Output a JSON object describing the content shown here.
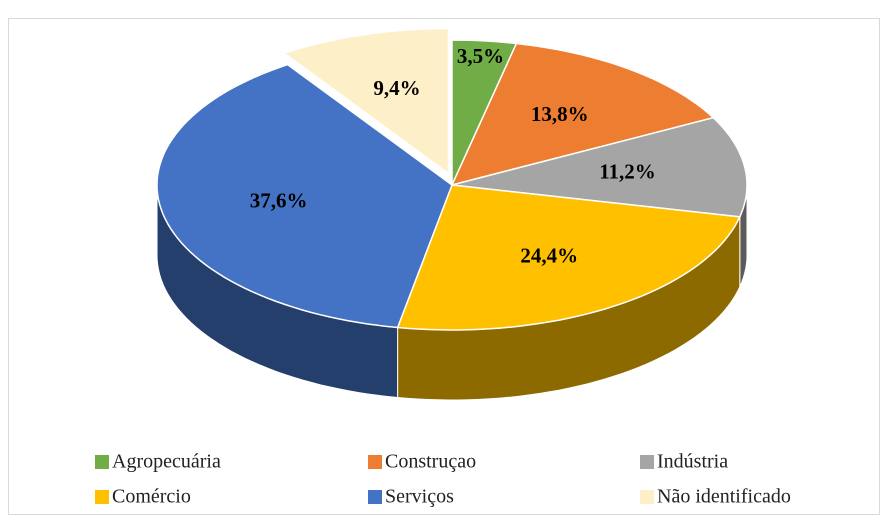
{
  "chart_data": {
    "type": "pie3d",
    "categories": [
      "Agropecuária",
      "Construçao",
      "Indústria",
      "Comércio",
      "Serviços",
      "Não identificado"
    ],
    "values": [
      3.5,
      13.8,
      11.2,
      24.4,
      37.6,
      9.4
    ],
    "value_labels": [
      "3,5%",
      "13,8%",
      "11,2%",
      "24,4%",
      "37,6%",
      "9,4%"
    ],
    "colors": [
      "#70ad47",
      "#ed7d31",
      "#a5a5a5",
      "#ffc000",
      "#4472c4",
      "#fdf0c8"
    ],
    "legend": "bottom"
  }
}
